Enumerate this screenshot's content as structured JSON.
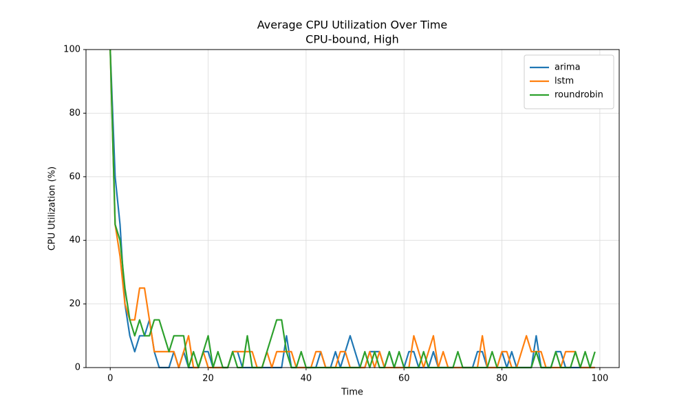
{
  "chart_data": {
    "type": "line",
    "title": "Average CPU Utilization Over Time",
    "subtitle": "CPU-bound, High",
    "xlabel": "Time",
    "ylabel": "CPU Utilization (%)",
    "x": [
      0,
      1,
      2,
      3,
      4,
      5,
      6,
      7,
      8,
      9,
      10,
      11,
      12,
      13,
      14,
      15,
      16,
      17,
      18,
      19,
      20,
      21,
      22,
      23,
      24,
      25,
      26,
      27,
      28,
      29,
      30,
      31,
      32,
      33,
      34,
      35,
      36,
      37,
      38,
      39,
      40,
      41,
      42,
      43,
      44,
      45,
      46,
      47,
      48,
      49,
      50,
      51,
      52,
      53,
      54,
      55,
      56,
      57,
      58,
      59,
      60,
      61,
      62,
      63,
      64,
      65,
      66,
      67,
      68,
      69,
      70,
      71,
      72,
      73,
      74,
      75,
      76,
      77,
      78,
      79,
      80,
      81,
      82,
      83,
      84,
      85,
      86,
      87,
      88,
      89,
      90,
      91,
      92,
      93,
      94,
      95,
      96,
      97,
      98,
      99
    ],
    "series": [
      {
        "name": "arima",
        "color": "#1f77b4",
        "values": [
          100,
          60,
          45,
          20,
          10,
          5,
          10,
          10,
          15,
          5,
          0,
          0,
          0,
          5,
          0,
          5,
          0,
          0,
          0,
          5,
          5,
          0,
          0,
          0,
          0,
          5,
          5,
          0,
          0,
          0,
          0,
          0,
          0,
          0,
          0,
          0,
          10,
          0,
          0,
          0,
          0,
          0,
          0,
          5,
          0,
          0,
          5,
          0,
          5,
          10,
          5,
          0,
          0,
          5,
          5,
          5,
          0,
          5,
          0,
          0,
          0,
          5,
          5,
          0,
          0,
          0,
          5,
          0,
          0,
          0,
          0,
          0,
          0,
          0,
          0,
          5,
          5,
          0,
          0,
          0,
          5,
          0,
          5,
          0,
          0,
          0,
          0,
          10,
          0,
          0,
          0,
          5,
          5,
          0,
          0,
          0,
          0,
          0,
          0,
          0
        ]
      },
      {
        "name": "lstm",
        "color": "#ff7f0e",
        "values": [
          100,
          45,
          35,
          20,
          15,
          15,
          25,
          25,
          15,
          5,
          5,
          5,
          5,
          5,
          0,
          5,
          10,
          0,
          0,
          5,
          0,
          0,
          0,
          0,
          0,
          5,
          5,
          5,
          5,
          5,
          0,
          0,
          5,
          0,
          5,
          5,
          5,
          5,
          0,
          0,
          0,
          0,
          5,
          5,
          0,
          0,
          0,
          5,
          5,
          0,
          0,
          0,
          0,
          5,
          0,
          5,
          0,
          0,
          0,
          0,
          0,
          0,
          10,
          5,
          0,
          5,
          10,
          0,
          5,
          0,
          0,
          0,
          0,
          0,
          0,
          0,
          10,
          0,
          0,
          0,
          5,
          5,
          0,
          0,
          5,
          10,
          5,
          5,
          5,
          0,
          0,
          0,
          0,
          5,
          5,
          5,
          0,
          0,
          0,
          0
        ]
      },
      {
        "name": "roundrobin",
        "color": "#2ca02c",
        "values": [
          100,
          45,
          40,
          25,
          15,
          10,
          15,
          10,
          10,
          15,
          15,
          10,
          5,
          10,
          10,
          10,
          0,
          5,
          0,
          5,
          10,
          0,
          5,
          0,
          0,
          5,
          0,
          0,
          10,
          0,
          0,
          0,
          5,
          10,
          15,
          15,
          5,
          0,
          0,
          5,
          0,
          0,
          0,
          0,
          0,
          0,
          0,
          0,
          0,
          0,
          0,
          0,
          5,
          0,
          5,
          0,
          0,
          5,
          0,
          5,
          0,
          0,
          0,
          0,
          5,
          0,
          0,
          0,
          0,
          0,
          0,
          5,
          0,
          0,
          0,
          0,
          0,
          0,
          5,
          0,
          0,
          0,
          0,
          0,
          0,
          0,
          0,
          5,
          0,
          0,
          0,
          5,
          0,
          0,
          0,
          5,
          0,
          5,
          0,
          5
        ]
      }
    ],
    "xlim": [
      -4.95,
      103.95
    ],
    "ylim": [
      0,
      100
    ],
    "xticks": [
      0,
      20,
      40,
      60,
      80,
      100
    ],
    "yticks": [
      0,
      20,
      40,
      60,
      80,
      100
    ],
    "grid": true,
    "legend": "upper right"
  }
}
